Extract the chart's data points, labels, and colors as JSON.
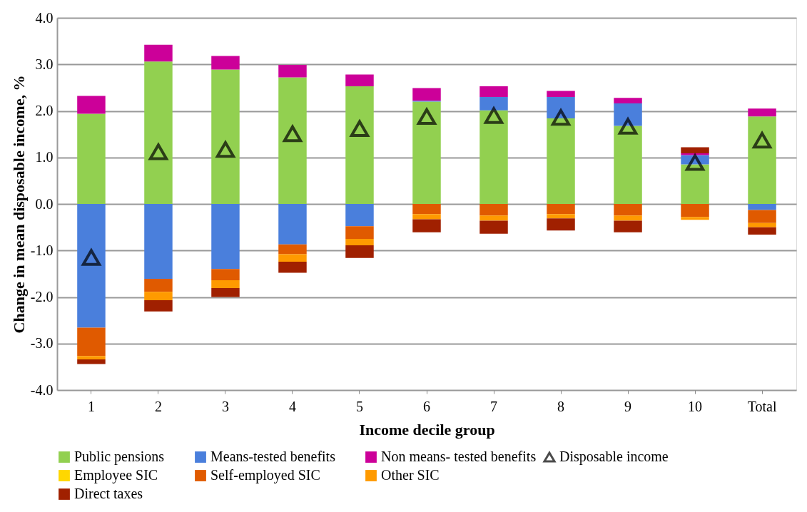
{
  "chart_data": {
    "type": "bar",
    "stacked": true,
    "xlabel": "Income decile group",
    "ylabel": "Change in mean disposable income, %",
    "categories": [
      "1",
      "2",
      "3",
      "4",
      "5",
      "6",
      "7",
      "8",
      "9",
      "10",
      "Total"
    ],
    "ylim": [
      -4.0,
      4.0
    ],
    "yticks": [
      {
        "value": -4,
        "label": "-4.0"
      },
      {
        "value": -3,
        "label": "-3.0"
      },
      {
        "value": -2,
        "label": "-2.0"
      },
      {
        "value": -1,
        "label": "-1.0"
      },
      {
        "value": 0,
        "label": "0.0"
      },
      {
        "value": 1,
        "label": "1.0"
      },
      {
        "value": 2,
        "label": "2.0"
      },
      {
        "value": 3,
        "label": "3.0"
      },
      {
        "value": 4,
        "label": "4.0"
      }
    ],
    "grid": "y",
    "legend": "bottom",
    "series": [
      {
        "name": "Public pensions",
        "color": "#92d050",
        "values": [
          1.94,
          3.06,
          2.89,
          2.72,
          2.53,
          2.2,
          2.01,
          1.84,
          1.68,
          0.85,
          1.88
        ]
      },
      {
        "name": "Means-tested benefits",
        "color": "#4a7fdc",
        "values": [
          -2.66,
          -1.61,
          -1.4,
          -0.87,
          -0.48,
          0.02,
          0.29,
          0.46,
          0.48,
          0.2,
          -0.13
        ]
      },
      {
        "name": "Non means- tested benefits",
        "color": "#cc0099",
        "values": [
          0.38,
          0.36,
          0.29,
          0.27,
          0.25,
          0.27,
          0.23,
          0.13,
          0.12,
          0.04,
          0.17
        ]
      },
      {
        "name": "Employee SIC",
        "color": "#ffd700",
        "values": [
          null,
          null,
          null,
          null,
          null,
          null,
          null,
          null,
          null,
          null,
          null
        ]
      },
      {
        "name": "Self-employed SIC",
        "color": "#e05a00",
        "values": [
          -0.61,
          -0.28,
          -0.24,
          -0.21,
          -0.27,
          -0.22,
          -0.25,
          -0.22,
          -0.25,
          -0.28,
          -0.28
        ]
      },
      {
        "name": "Other SIC",
        "color": "#ff9a00",
        "values": [
          -0.07,
          -0.18,
          -0.17,
          -0.16,
          -0.14,
          -0.11,
          -0.11,
          -0.09,
          -0.11,
          -0.06,
          -0.09
        ]
      },
      {
        "name": "Direct taxes",
        "color": "#a02000",
        "values": [
          -0.1,
          -0.24,
          -0.19,
          -0.24,
          -0.27,
          -0.28,
          -0.28,
          -0.26,
          -0.25,
          0.13,
          -0.16
        ]
      },
      {
        "name": "Disposable income",
        "type": "scatter",
        "marker": "triangle",
        "color": "#000000",
        "values": [
          -1.15,
          1.12,
          1.17,
          1.51,
          1.62,
          1.88,
          1.9,
          1.86,
          1.67,
          0.89,
          1.37
        ]
      }
    ]
  }
}
